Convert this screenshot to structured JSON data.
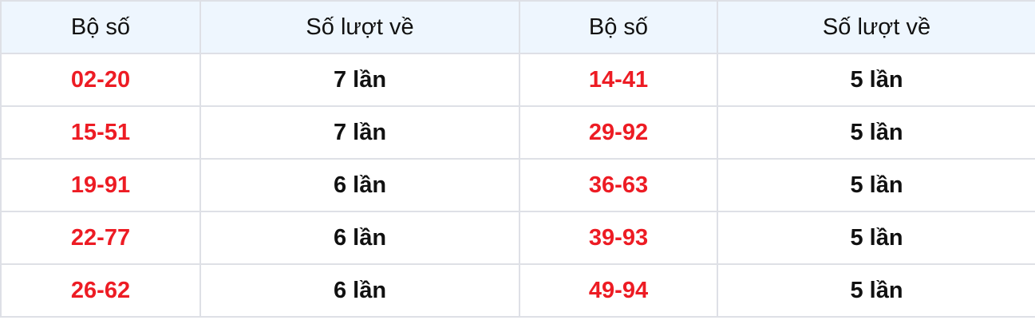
{
  "headers": [
    "Bộ số",
    "Số lượt về",
    "Bộ số",
    "Số lượt về"
  ],
  "rows": [
    [
      "02-20",
      "7 lần",
      "14-41",
      "5 lần"
    ],
    [
      "15-51",
      "7 lần",
      "29-92",
      "5 lần"
    ],
    [
      "19-91",
      "6 lần",
      "36-63",
      "5 lần"
    ],
    [
      "22-77",
      "6 lần",
      "39-93",
      "5 lần"
    ],
    [
      "26-62",
      "6 lần",
      "49-94",
      "5 lần"
    ]
  ],
  "colors": {
    "number": "#ed1c24",
    "header_bg": "#eef6fe",
    "border": "#dee0e6"
  }
}
